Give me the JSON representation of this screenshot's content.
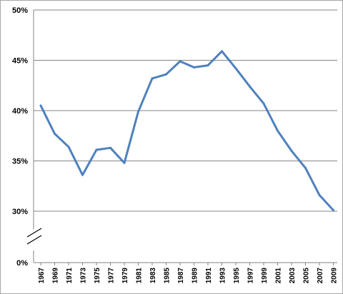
{
  "chart_data": {
    "type": "line",
    "title": "",
    "xlabel": "",
    "ylabel": "",
    "x": [
      1967,
      1969,
      1971,
      1973,
      1975,
      1977,
      1979,
      1981,
      1983,
      1985,
      1987,
      1989,
      1991,
      1993,
      1995,
      1997,
      1999,
      2001,
      2003,
      2005,
      2007,
      2009
    ],
    "series": [
      {
        "values": [
          40.5,
          37.7,
          36.4,
          33.6,
          36.1,
          36.3,
          34.8,
          39.9,
          43.2,
          43.6,
          44.9,
          44.3,
          44.5,
          45.9,
          44.2,
          42.4,
          40.7,
          38.0,
          36.0,
          34.3,
          31.6,
          30.1
        ],
        "color": "#4f81bd"
      }
    ],
    "ylim": [
      30,
      50
    ],
    "y_ticks": [
      "50%",
      "45%",
      "40%",
      "35%",
      "30%"
    ],
    "y_axis_break": true,
    "y_zero_label": "0%",
    "x_tick_labels": [
      "1967",
      "1969",
      "1971",
      "1973",
      "1975",
      "1977",
      "1979",
      "1981",
      "1983",
      "1985",
      "1987",
      "1989",
      "1991",
      "1993",
      "1995",
      "1997",
      "1999",
      "2001",
      "2003",
      "2005",
      "2007",
      "2009"
    ],
    "grid": "horizontal",
    "legend": "none"
  }
}
